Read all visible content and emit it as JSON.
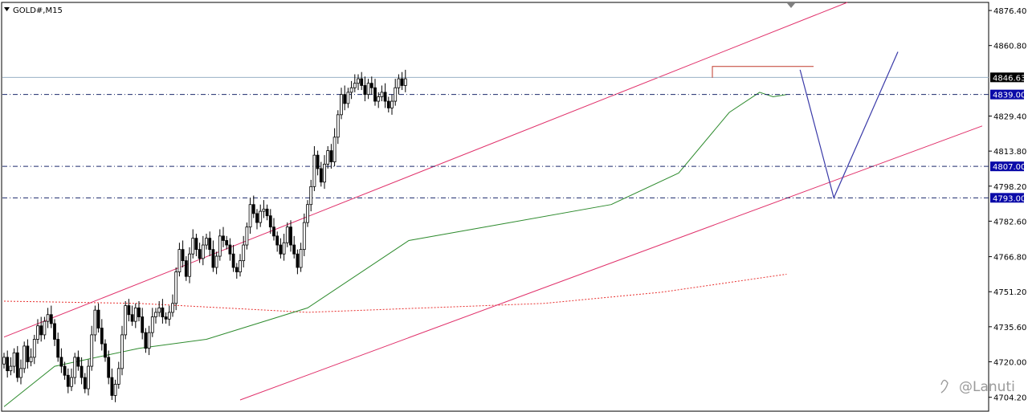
{
  "header": {
    "symbol": "GOLD#,M15"
  },
  "watermark": "@Lanuti",
  "chart_data": {
    "type": "candlestick",
    "ylim": [
      4698,
      4880
    ],
    "y_ticks": [
      4876.4,
      4860.8,
      4829.4,
      4813.8,
      4798.2,
      4782.6,
      4766.8,
      4751.2,
      4735.6,
      4720.0,
      4704.2
    ],
    "current_price": 4846.63,
    "levels": [
      4839.0,
      4807.0,
      4793.0
    ],
    "swing_high": 4851.5,
    "closes": [
      4722,
      4716,
      4718,
      4724,
      4713,
      4717,
      4727,
      4720,
      4722,
      4730,
      4736,
      4732,
      4738,
      4741,
      4737,
      4730,
      4722,
      4718,
      4714,
      4709,
      4713,
      4722,
      4718,
      4713,
      4708,
      4718,
      4732,
      4743,
      4735,
      4728,
      4722,
      4713,
      4705,
      4710,
      4717,
      4732,
      4745,
      4741,
      4738,
      4744,
      4740,
      4733,
      4726,
      4733,
      4740,
      4742,
      4744,
      4740,
      4739,
      4742,
      4746,
      4760,
      4770,
      4765,
      4758,
      4768,
      4775,
      4770,
      4766,
      4772,
      4775,
      4770,
      4762,
      4767,
      4776,
      4774,
      4772,
      4768,
      4762,
      4760,
      4765,
      4772,
      4780,
      4790,
      4786,
      4782,
      4787,
      4788,
      4785,
      4780,
      4776,
      4772,
      4768,
      4773,
      4780,
      4772,
      4768,
      4762,
      4770,
      4782,
      4790,
      4798,
      4812,
      4806,
      4800,
      4808,
      4814,
      4809,
      4820,
      4830,
      4839,
      4835,
      4840,
      4842,
      4844,
      4846,
      4843,
      4839,
      4844,
      4842,
      4836,
      4838,
      4840,
      4836,
      4833,
      4836,
      4842,
      4846,
      4843,
      4846
    ],
    "ma_fast": [
      [
        0,
        4700
      ],
      [
        15,
        4718
      ],
      [
        40,
        4726
      ],
      [
        60,
        4730
      ],
      [
        90,
        4744
      ],
      [
        120,
        4774
      ],
      [
        150,
        4782
      ],
      [
        180,
        4790
      ],
      [
        200,
        4804
      ],
      [
        215,
        4831
      ],
      [
        224,
        4840
      ],
      [
        228,
        4838
      ],
      [
        232,
        4839
      ]
    ],
    "ma_slow": [
      [
        0,
        4747
      ],
      [
        40,
        4746
      ],
      [
        90,
        4742
      ],
      [
        160,
        4746
      ],
      [
        195,
        4751
      ],
      [
        232,
        4759
      ]
    ],
    "channel": {
      "upper": [
        [
          0,
          4731
        ],
        [
          250,
          4880
        ]
      ],
      "lower": [
        [
          70,
          4703
        ],
        [
          290,
          4825
        ]
      ]
    },
    "projection": [
      [
        4850,
        236,
        4850
      ],
      [
        4793,
        246,
        4793
      ],
      [
        4858,
        265,
        4858
      ]
    ]
  }
}
